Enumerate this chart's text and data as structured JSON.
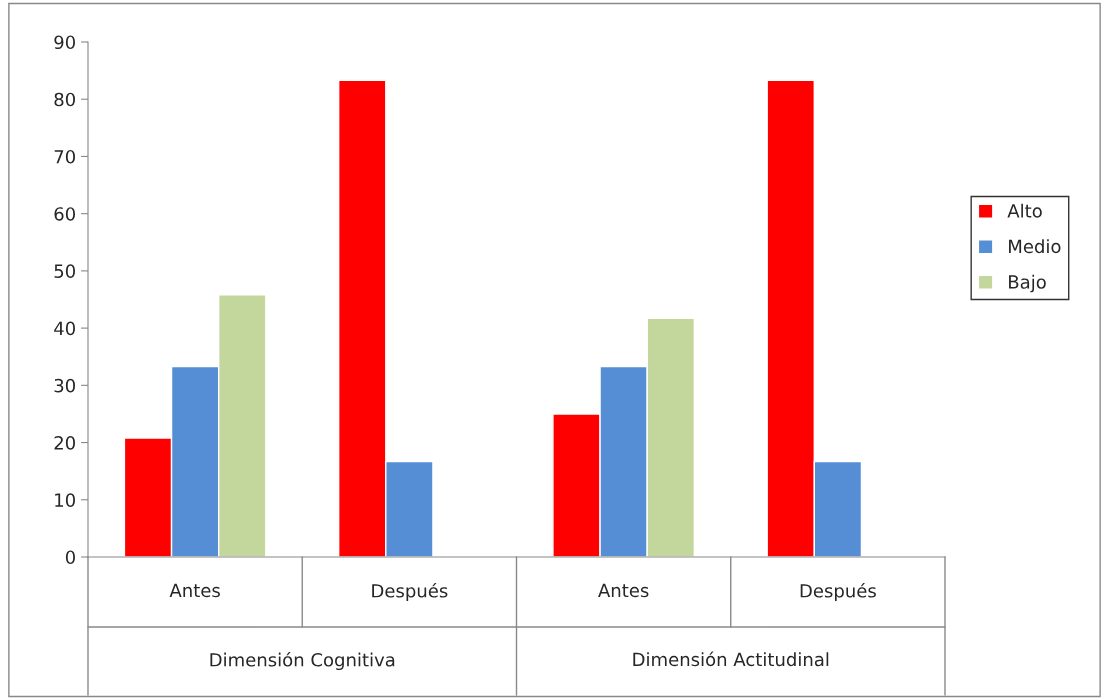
{
  "chart_data": {
    "type": "bar",
    "categories": [
      "Antes",
      "Después",
      "Antes",
      "Después"
    ],
    "series": [
      {
        "name": "Alto",
        "color": "#ff0000",
        "values": [
          20.8,
          83.3,
          25,
          83.3
        ]
      },
      {
        "name": "Medio",
        "color": "#558ed5",
        "values": [
          33.3,
          16.7,
          33.3,
          16.7
        ]
      },
      {
        "name": "Bajo",
        "color": "#c3d69b",
        "values": [
          45.8,
          null,
          41.7,
          null
        ]
      }
    ],
    "annotations": [
      "Dimensión Cognitiva",
      "Dimensión Actitudinal"
    ],
    "ylim": [
      0,
      90
    ],
    "yticks": [
      0,
      10,
      20,
      30,
      40,
      50,
      60,
      70,
      80,
      90
    ],
    "grid": false,
    "legend": "right"
  }
}
